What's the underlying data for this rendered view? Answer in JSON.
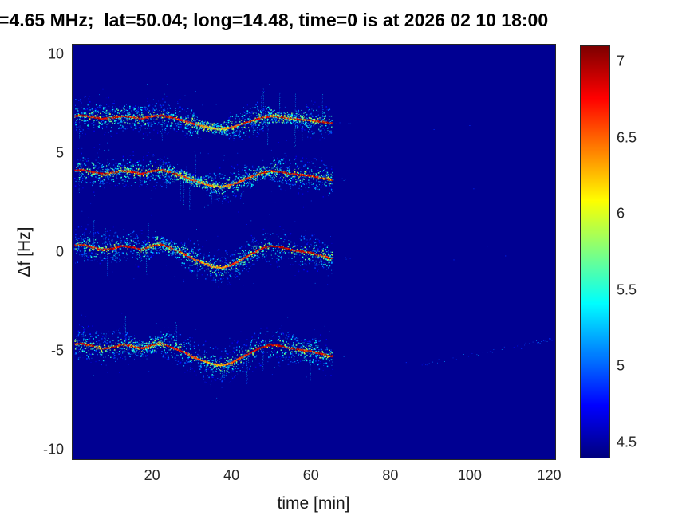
{
  "chart_data": {
    "type": "heatmap",
    "title": "=4.65 MHz;  lat=50.04; long=14.48, time=0 is at 2026 02 10 18:00",
    "xlabel": "time [min]",
    "ylabel": "Δf [Hz]",
    "xlim": [
      0,
      121.5
    ],
    "ylim": [
      -10.5,
      10.5
    ],
    "x_ticks": [
      20,
      40,
      60,
      80,
      100,
      120
    ],
    "y_ticks": [
      -10,
      -5,
      0,
      5,
      10
    ],
    "colormap": "jet",
    "color_limits": [
      4.4,
      7.1
    ],
    "colorbar_ticks": [
      4.5,
      5,
      5.5,
      6,
      6.5,
      7
    ],
    "background_value": 4.45,
    "traces_visible_min": [
      0,
      65
    ],
    "traces": [
      {
        "center_hz": 6.75,
        "wave_amp": 0.8,
        "spread": 0.55
      },
      {
        "center_hz": 3.95,
        "wave_amp": 1.0,
        "spread": 0.6
      },
      {
        "center_hz": 0.1,
        "wave_amp": 1.4,
        "spread": 0.85
      },
      {
        "center_hz": -4.9,
        "wave_amp": 1.3,
        "spread": 0.9
      }
    ],
    "wave_time_min": [
      0,
      2.5,
      5,
      7.5,
      10,
      12.5,
      15,
      17.5,
      20,
      22.5,
      25,
      27.5,
      30,
      32.5,
      35,
      37.5,
      40,
      42.5,
      45,
      47.5,
      50,
      52.5,
      55,
      57.5,
      60,
      62.5,
      65
    ],
    "wave_offset_hz": [
      0.15,
      0.2,
      0.1,
      0.0,
      0.05,
      0.15,
      0.1,
      0.0,
      0.15,
      0.2,
      0.05,
      -0.1,
      -0.3,
      -0.45,
      -0.6,
      -0.65,
      -0.55,
      -0.35,
      -0.15,
      0.05,
      0.15,
      0.1,
      0.0,
      -0.05,
      -0.1,
      -0.2,
      -0.3
    ],
    "faint_arc": {
      "t_start": 88,
      "t_end": 121,
      "hz_start": -5.7,
      "hz_end": -4.4,
      "value": 5.0
    },
    "specks": [
      [
        100,
        6.4
      ],
      [
        104.5,
        0.3
      ],
      [
        96,
        -0.4
      ],
      [
        109,
        -0.2
      ],
      [
        91,
        6.2
      ],
      [
        113,
        -4.9
      ],
      [
        117,
        -4.6
      ],
      [
        84,
        -5.6
      ],
      [
        120,
        -4.4
      ],
      [
        101,
        3.2
      ]
    ]
  },
  "colors": {
    "background_hex": "#000092",
    "axis_text_hex": "#262626",
    "title_hex": "#000000"
  }
}
